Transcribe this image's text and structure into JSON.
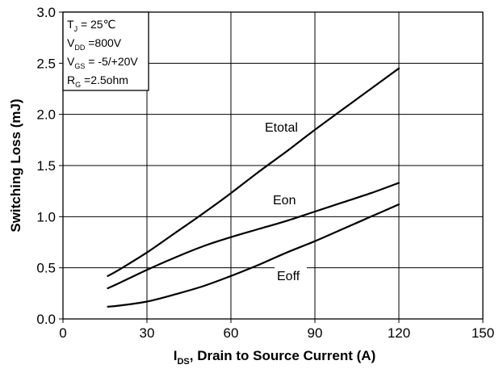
{
  "chart_data": {
    "type": "line",
    "xlabel": {
      "main": "I",
      "sub": "DS",
      "rest": ", Drain to Source Current (A)"
    },
    "ylabel": "Switching Loss (mJ)",
    "xlim": [
      0,
      150
    ],
    "ylim": [
      0,
      3.0
    ],
    "xticks": [
      0,
      30,
      60,
      90,
      120,
      150
    ],
    "yticks": [
      0.0,
      0.5,
      1.0,
      1.5,
      2.0,
      2.5,
      3.0
    ],
    "xtick_labels": [
      "0",
      "30",
      "60",
      "90",
      "120",
      "150"
    ],
    "ytick_labels": [
      "0.0",
      "0.5",
      "1.0",
      "1.5",
      "2.0",
      "2.5",
      "3.0"
    ],
    "grid": true,
    "conditions": [
      {
        "main": "T",
        "sub": "J",
        "rest": " = 25℃"
      },
      {
        "main": "V",
        "sub": "DD",
        "rest": " =800V"
      },
      {
        "main": "V",
        "sub": "GS",
        "rest": " = -5/+20V"
      },
      {
        "main": "R",
        "sub": "G",
        "rest": " =2.5ohm"
      }
    ],
    "series": [
      {
        "name": "Etotal",
        "x": [
          16,
          20,
          30,
          40,
          50,
          60,
          70,
          80,
          90,
          100,
          110,
          120
        ],
        "y": [
          0.42,
          0.48,
          0.65,
          0.84,
          1.03,
          1.23,
          1.44,
          1.64,
          1.85,
          2.05,
          2.25,
          2.45
        ]
      },
      {
        "name": "Eon",
        "x": [
          16,
          20,
          30,
          40,
          50,
          60,
          70,
          80,
          90,
          100,
          110,
          120
        ],
        "y": [
          0.3,
          0.35,
          0.48,
          0.6,
          0.71,
          0.8,
          0.88,
          0.96,
          1.05,
          1.14,
          1.23,
          1.33
        ]
      },
      {
        "name": "Eoff",
        "x": [
          16,
          20,
          30,
          40,
          50,
          60,
          70,
          80,
          90,
          100,
          110,
          120
        ],
        "y": [
          0.12,
          0.13,
          0.17,
          0.24,
          0.32,
          0.42,
          0.53,
          0.65,
          0.76,
          0.88,
          1.0,
          1.12
        ]
      }
    ]
  }
}
